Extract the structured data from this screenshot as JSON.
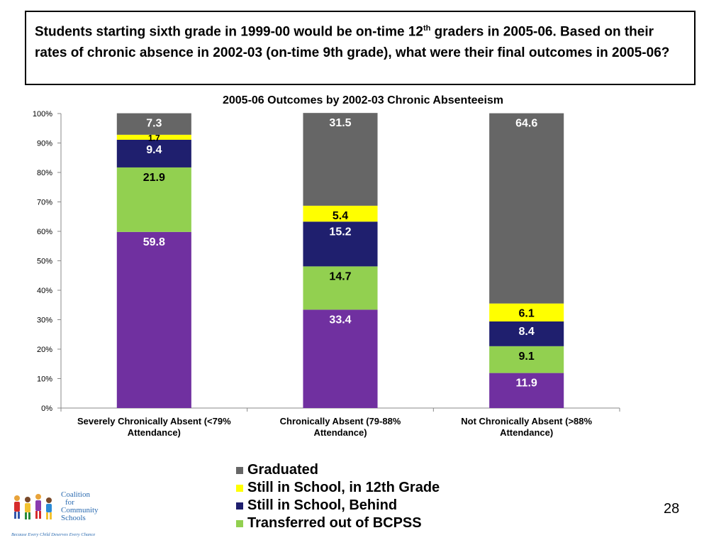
{
  "slide": {
    "title_part1": "Students starting sixth grade in 1999-00 would be on-time 12",
    "title_sup": "th",
    "title_part2": " graders in 2005-06. Based on their rates of chronic absence in 2002-03 (on-time 9th grade), what were their final outcomes in 2005-06?",
    "page_number": "28"
  },
  "logo": {
    "line1": "Coalition",
    "line2": "for",
    "line3": "Community",
    "line4": "Schools",
    "tagline": "Because Every Child Deserves Every Chance"
  },
  "chart_data": {
    "type": "bar",
    "stacked": true,
    "title": "2005-06 Outcomes by 2002-03 Chronic Absenteeism",
    "categories": [
      [
        "Severely Chronically Absent (<79%",
        "Attendance)"
      ],
      [
        "Chronically Absent (79-88%",
        "Attendance)"
      ],
      [
        "Not Chronically Absent (>88%",
        "Attendance)"
      ]
    ],
    "ylim": [
      0,
      100
    ],
    "yticks": [
      "0%",
      "10%",
      "20%",
      "30%",
      "40%",
      "50%",
      "60%",
      "70%",
      "80%",
      "90%",
      "100%"
    ],
    "series": [
      {
        "name": "",
        "color": "#7030a0",
        "label_color": "#ffffff",
        "values": [
          59.8,
          33.4,
          11.9
        ]
      },
      {
        "name": "Transferred out of BCPSS",
        "color": "#92d050",
        "label_color": "#000000",
        "values": [
          21.9,
          14.7,
          9.1
        ]
      },
      {
        "name": "Still in School, Behind",
        "color": "#1f1f6e",
        "label_color": "#ffffff",
        "values": [
          9.4,
          15.2,
          8.4
        ]
      },
      {
        "name": "Still in School, in 12th Grade",
        "color": "#ffff00",
        "label_color": "#000000",
        "values": [
          1.7,
          5.4,
          6.1
        ]
      },
      {
        "name": "Graduated",
        "color": "#666666",
        "label_color": "#ffffff",
        "values": [
          7.3,
          31.5,
          64.6
        ]
      }
    ],
    "legend": [
      "Graduated",
      "Still in School, in 12th Grade",
      "Still in School, Behind",
      "Transferred out of BCPSS"
    ],
    "legend_position": "bottom"
  }
}
